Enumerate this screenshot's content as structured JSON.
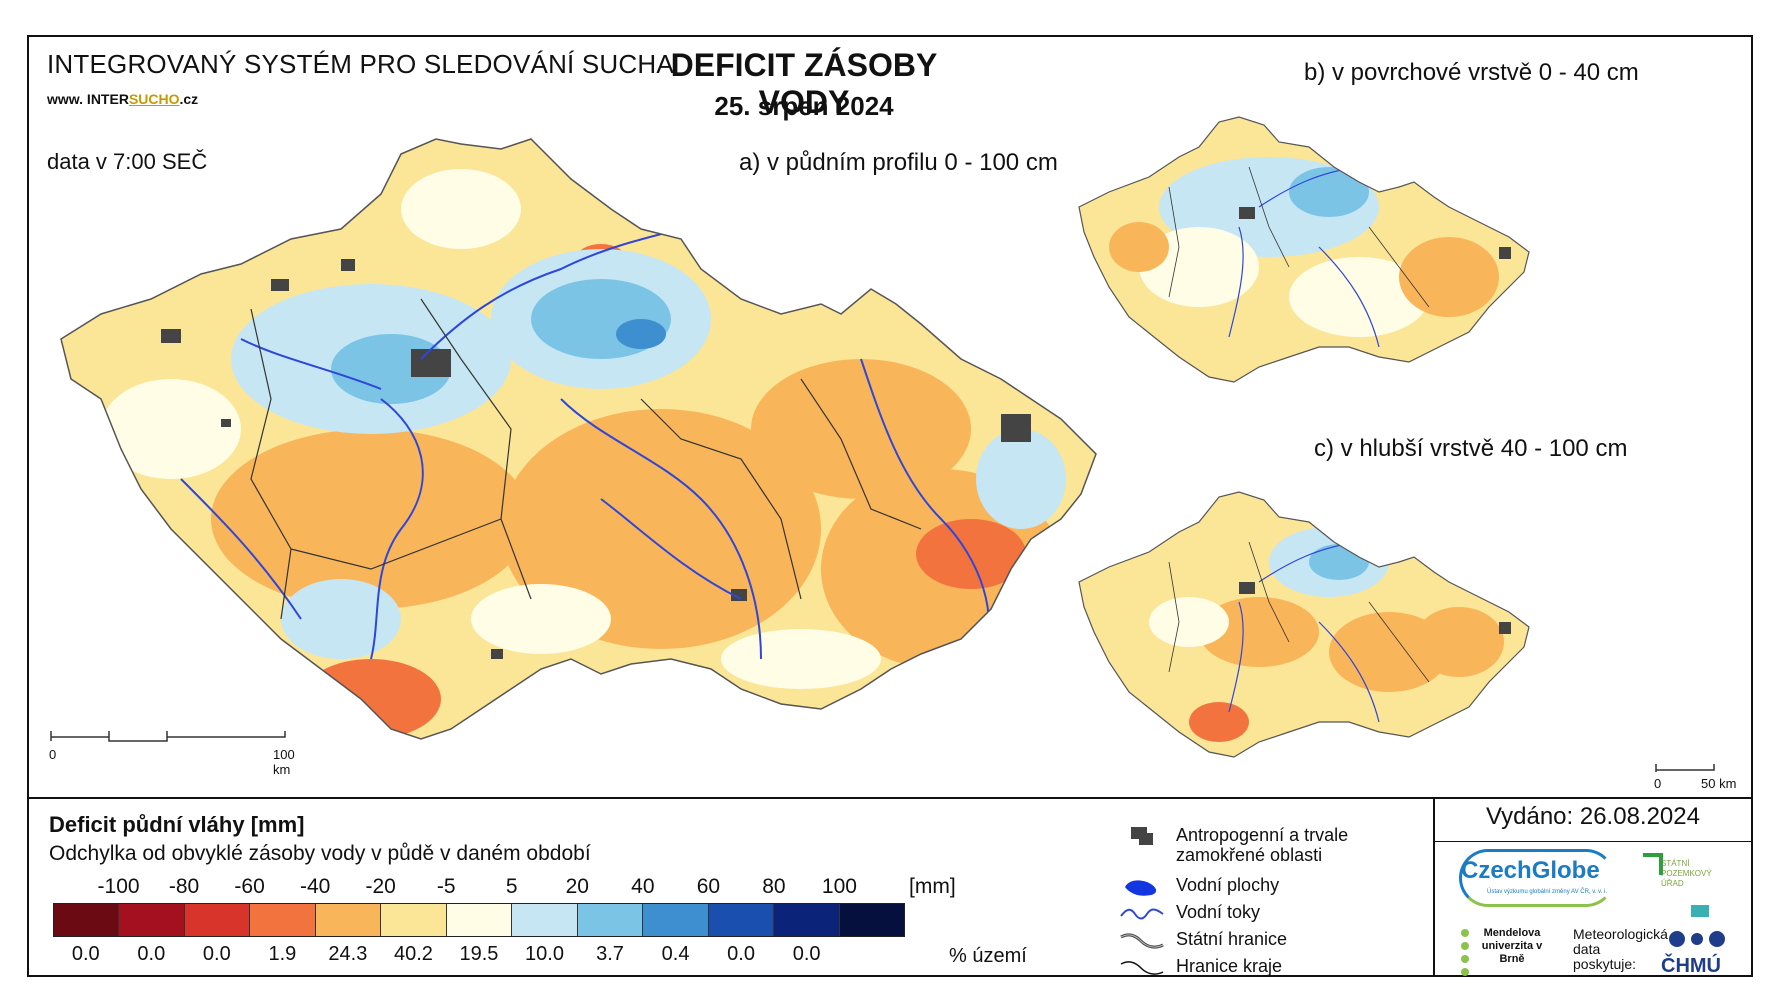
{
  "header": {
    "system_title": "INTEGROVANÝ SYSTÉM PRO SLEDOVÁNÍ SUCHA",
    "url_prefix": "www. INTER",
    "url_brand": "SUCHO",
    "url_suffix": ".cz",
    "data_time": "data v 7:00 SEČ",
    "main_title": "DEFICIT ZÁSOBY VODY",
    "main_date": "25. srpen 2024"
  },
  "maps": {
    "a_label": "a) v půdním profilu 0 - 100 cm",
    "b_label": "b) v povrchové vrstvě 0 - 40 cm",
    "c_label": "c) v hlubší vrstvě 40 - 100 cm",
    "scale_a": {
      "start": "0",
      "end": "100 km"
    },
    "scale_b": {
      "start": "0",
      "end": "50 km"
    }
  },
  "legend": {
    "title": "Deficit půdní vláhy  [mm]",
    "subtitle": "Odchylka od obvyklé zásoby vody v půdě v daném období",
    "thresholds": [
      "-100",
      "-80",
      "-60",
      "-40",
      "-20",
      "-5",
      "5",
      "20",
      "40",
      "60",
      "80",
      "100"
    ],
    "unit": "[mm]",
    "classes": [
      {
        "color": "#6b0a12",
        "pct": "0.0"
      },
      {
        "color": "#a4101e",
        "pct": "0.0"
      },
      {
        "color": "#d9342b",
        "pct": "0.0"
      },
      {
        "color": "#f3733e",
        "pct": "1.9"
      },
      {
        "color": "#f9b55a",
        "pct": "24.3"
      },
      {
        "color": "#fbe597",
        "pct": "40.2"
      },
      {
        "color": "#fffde6",
        "pct": "19.5"
      },
      {
        "color": "#c6e6f4",
        "pct": "10.0"
      },
      {
        "color": "#7cc4e6",
        "pct": "3.7"
      },
      {
        "color": "#3d8fd0",
        "pct": "0.4"
      },
      {
        "color": "#1a4fb0",
        "pct": "0.0"
      },
      {
        "color": "#0c237a",
        "pct": "0.0"
      },
      {
        "color": "#05103f",
        "pct": ""
      }
    ],
    "pct_unit": "% území"
  },
  "symbols": [
    {
      "icon": "urban-area-icon",
      "label": "Antropogenní a trvale zamokřené oblasti"
    },
    {
      "icon": "water-body-icon",
      "label": "Vodní plochy"
    },
    {
      "icon": "river-icon",
      "label": "Vodní toky"
    },
    {
      "icon": "state-border-icon",
      "label": "Státní hranice"
    },
    {
      "icon": "region-border-icon",
      "label": "Hranice kraje"
    }
  ],
  "issued": "Vydáno: 26.08.2024",
  "logos": {
    "czechglobe": "CzechGlobe",
    "czechglobe_sub": "Ústav výzkumu globální změny AV ČR, v. v. i.",
    "spu": "STÁTNÍ POZEMKOVÝ ÚŘAD",
    "mendelu": "Mendelova univerzita v Brně",
    "met_provider": "Meteorologická data poskytuje:",
    "chmu": "ČHMÚ"
  }
}
